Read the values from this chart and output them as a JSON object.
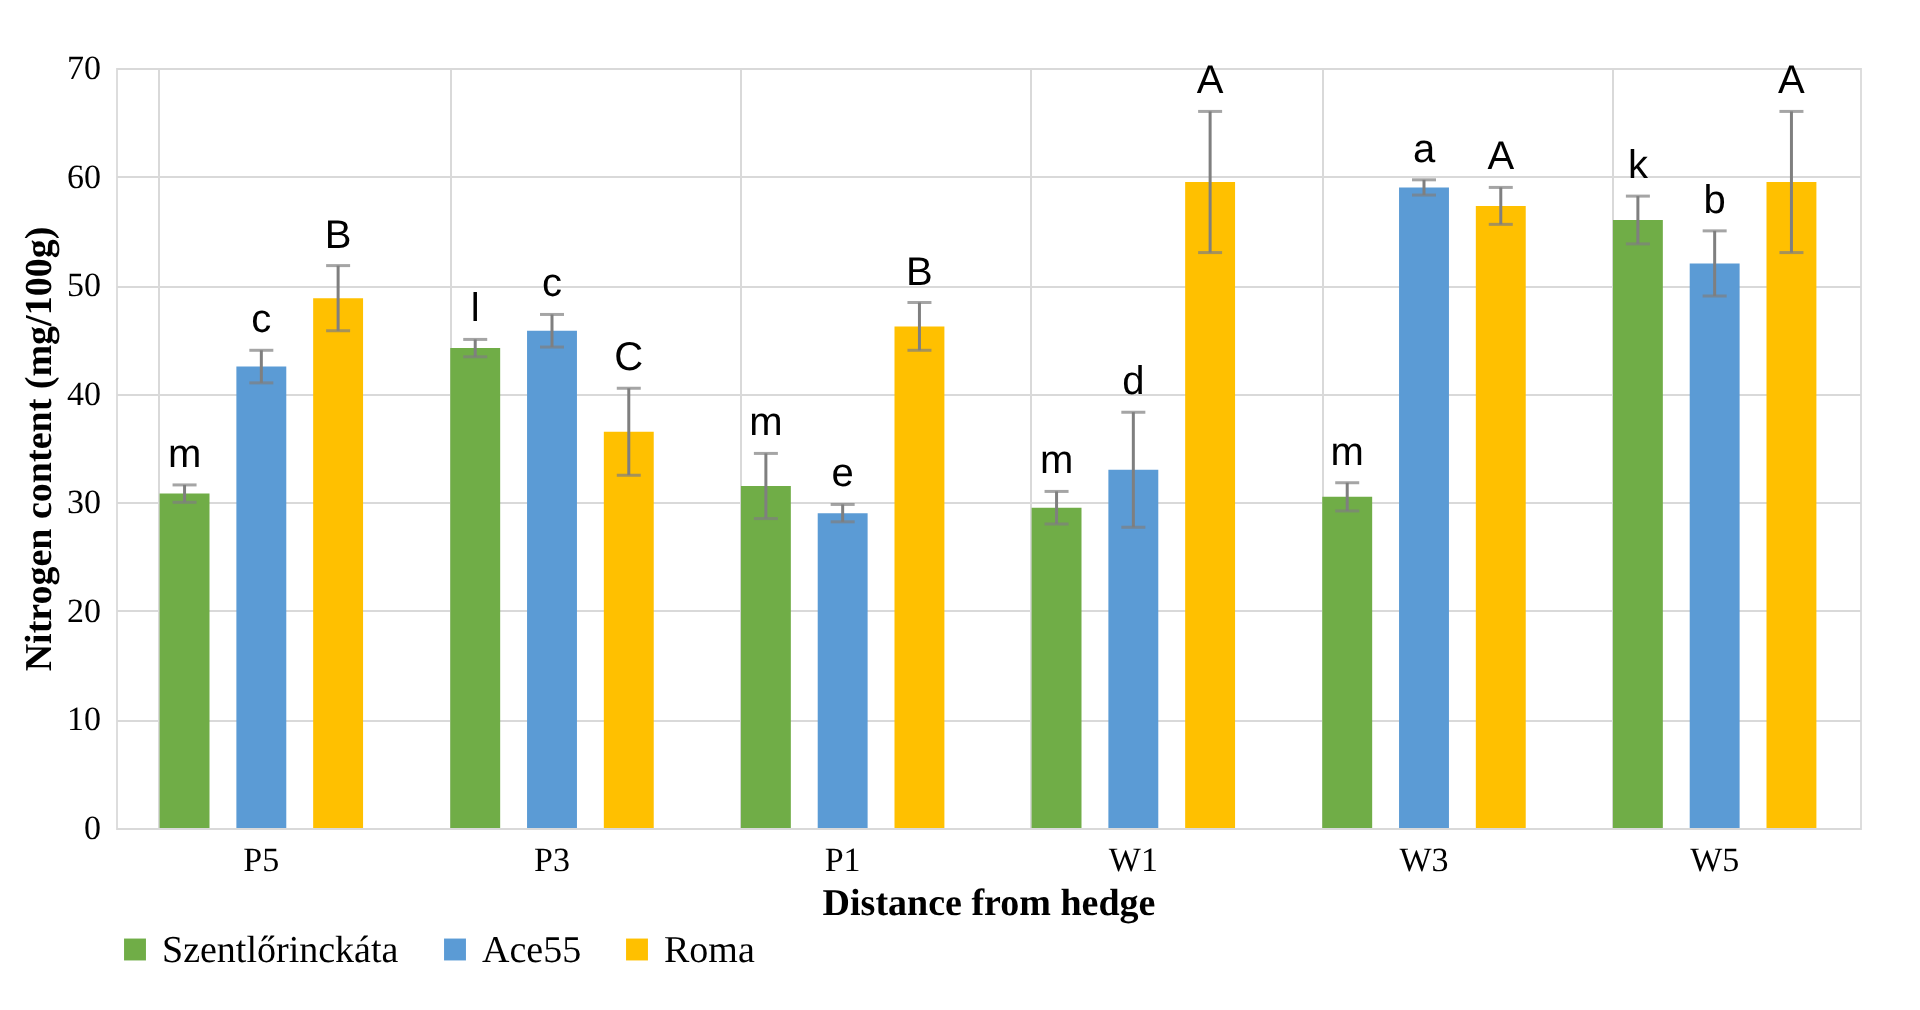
{
  "chart_data": {
    "type": "bar",
    "xlabel": "Distance from hedge",
    "ylabel": "Nitrogen content (mg/100g)",
    "categories": [
      "P5",
      "P3",
      "P1",
      "W1",
      "W3",
      "W5"
    ],
    "series": [
      {
        "name": "Szentlőrinckáta",
        "color": "#70ad47",
        "values": [
          30.8,
          44.2,
          31.5,
          29.5,
          30.5,
          56
        ],
        "errors": [
          0.8,
          0.8,
          3,
          1.5,
          1.3,
          2.2
        ]
      },
      {
        "name": "Ace55",
        "color": "#5b9bd5",
        "values": [
          42.5,
          45.8,
          29,
          33,
          59,
          52
        ],
        "errors": [
          1.5,
          1.5,
          0.8,
          5.3,
          0.7,
          3
        ]
      },
      {
        "name": "Roma",
        "color": "#ffc000",
        "values": [
          48.8,
          36.5,
          46.2,
          59.5,
          57.3,
          59.5
        ],
        "errors": [
          3,
          4,
          2.2,
          6.5,
          1.7,
          6.5
        ]
      }
    ],
    "annotations": [
      "m",
      "c",
      "B",
      "l",
      "c",
      "C",
      "m",
      "e",
      "B",
      "m",
      "d",
      "A",
      "m",
      "a",
      "A",
      "k",
      "b",
      "A"
    ],
    "ylim": [
      0,
      70
    ],
    "yticks": [
      0,
      10,
      20,
      30,
      40,
      50,
      60,
      70
    ],
    "grid": true,
    "legend": "bottom"
  }
}
